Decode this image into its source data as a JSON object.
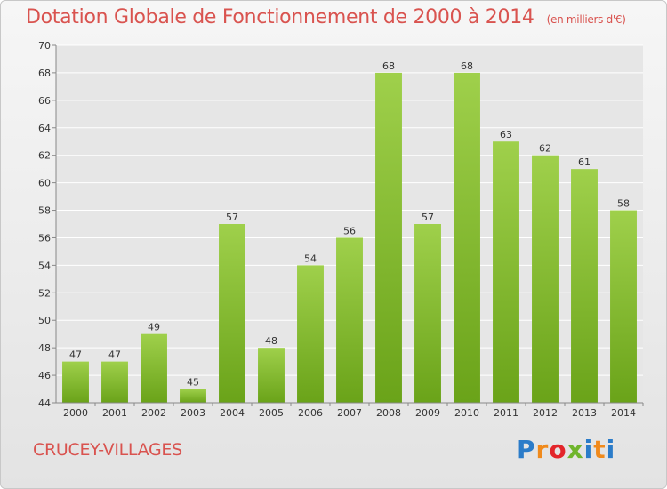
{
  "header": {
    "title": "Dotation Globale de Fonctionnement de 2000 à 2014",
    "subtitle": "(en milliers d'€)"
  },
  "footer": {
    "place": "CRUCEY-VILLAGES",
    "logo": {
      "letters": [
        "P",
        "r",
        "o",
        "x",
        "i",
        "t",
        "i"
      ],
      "colors": [
        "#2b7cc9",
        "#f08a1c",
        "#e3262b",
        "#6fb52c",
        "#2b7cc9",
        "#f08a1c",
        "#2b7cc9"
      ]
    }
  },
  "colors": {
    "bar_top": "#9fd04b",
    "bar_bottom": "#6aa319",
    "title": "#d9534f",
    "grid": "#ffffff"
  },
  "chart_data": {
    "type": "bar",
    "categories": [
      "2000",
      "2001",
      "2002",
      "2003",
      "2004",
      "2005",
      "2006",
      "2007",
      "2008",
      "2009",
      "2010",
      "2011",
      "2012",
      "2013",
      "2014"
    ],
    "values": [
      47,
      47,
      49,
      45,
      57,
      48,
      54,
      56,
      68,
      57,
      68,
      63,
      62,
      61,
      58
    ],
    "ylim": [
      44,
      70
    ],
    "yticks": [
      44,
      46,
      48,
      50,
      52,
      54,
      56,
      58,
      60,
      62,
      64,
      66,
      68,
      70
    ],
    "grid": true,
    "title": "Dotation Globale de Fonctionnement de 2000 à 2014",
    "subtitle": "(en milliers d'€)",
    "xlabel": "",
    "ylabel": ""
  }
}
